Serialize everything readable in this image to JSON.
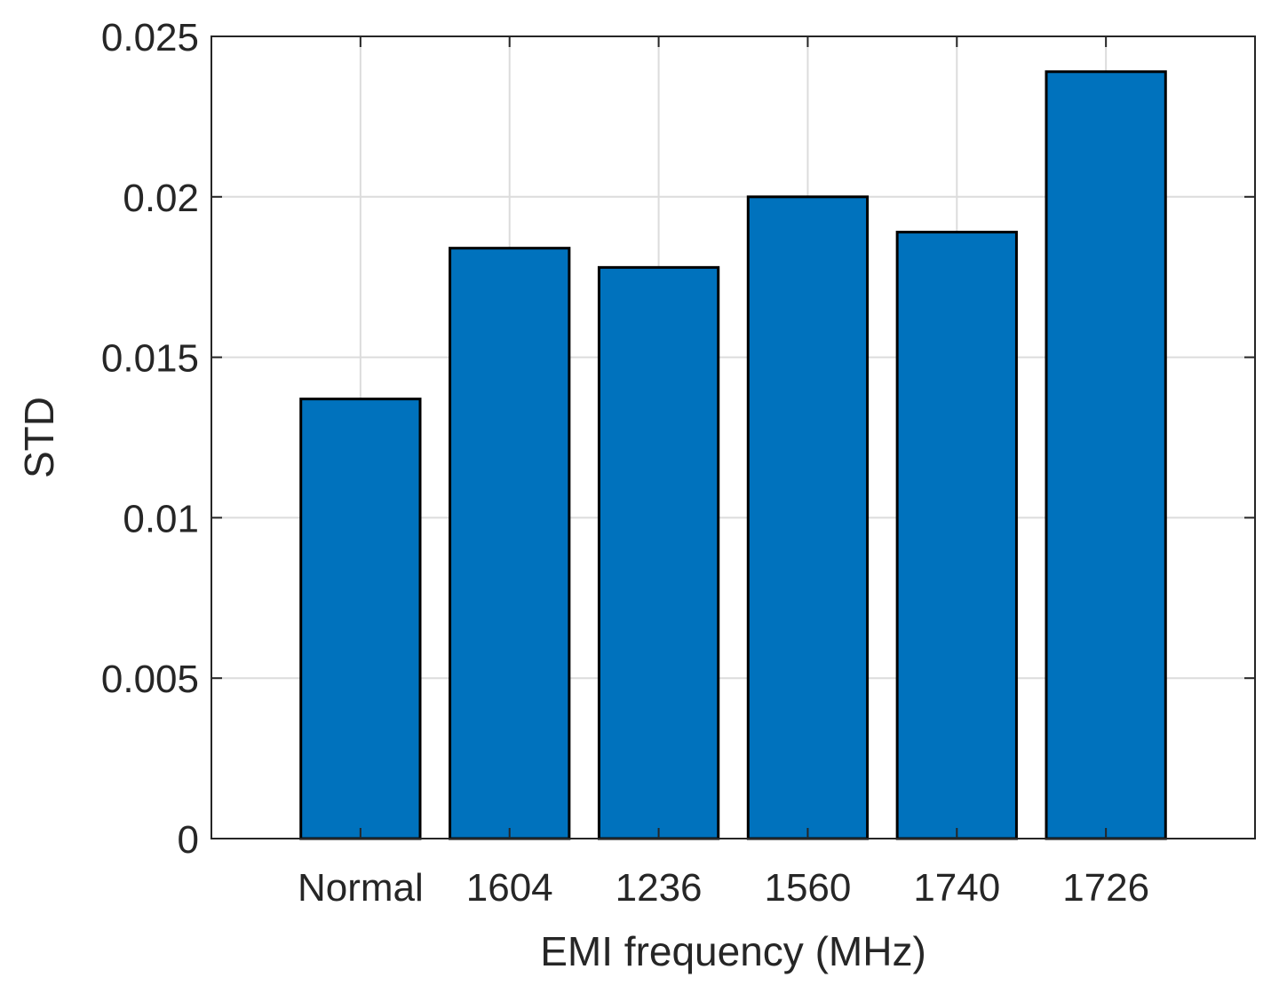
{
  "chart_data": {
    "type": "bar",
    "categories": [
      "Normal",
      "1604",
      "1236",
      "1560",
      "1740",
      "1726"
    ],
    "values": [
      0.0137,
      0.0184,
      0.0178,
      0.02,
      0.0189,
      0.0239
    ],
    "title": "",
    "xlabel": "EMI frequency (MHz)",
    "ylabel": "STD",
    "ylim": [
      0,
      0.025
    ],
    "yticks": [
      0,
      0.005,
      0.01,
      0.015,
      0.02,
      0.025
    ],
    "ytick_labels": [
      "0",
      "0.005",
      "0.01",
      "0.015",
      "0.02",
      "0.025"
    ],
    "grid": true,
    "legend": "none",
    "bar_color": "#0072BD",
    "edge_color": "#000000",
    "grid_color": "#dcdcdc",
    "axis_color": "#262626"
  }
}
